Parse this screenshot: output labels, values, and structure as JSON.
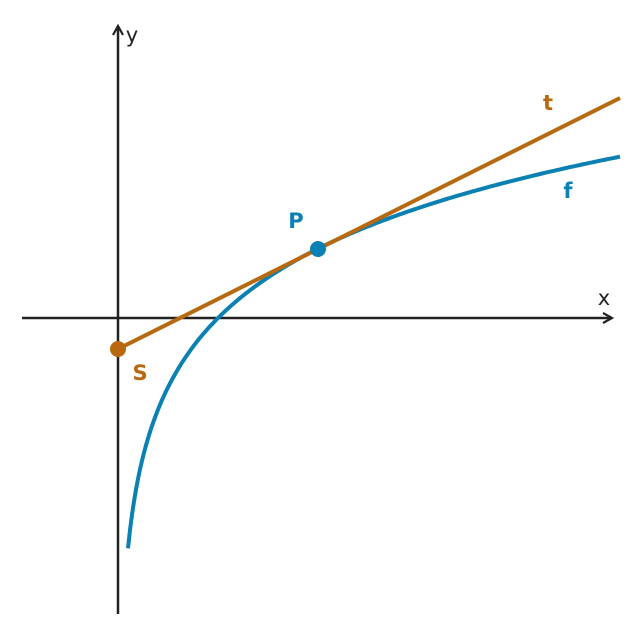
{
  "axes": {
    "x_label": "x",
    "y_label": "y"
  },
  "curves": {
    "function_label": "f",
    "tangent_label": "t"
  },
  "points": {
    "tangent_point": "P",
    "intercept_point": "S"
  }
}
